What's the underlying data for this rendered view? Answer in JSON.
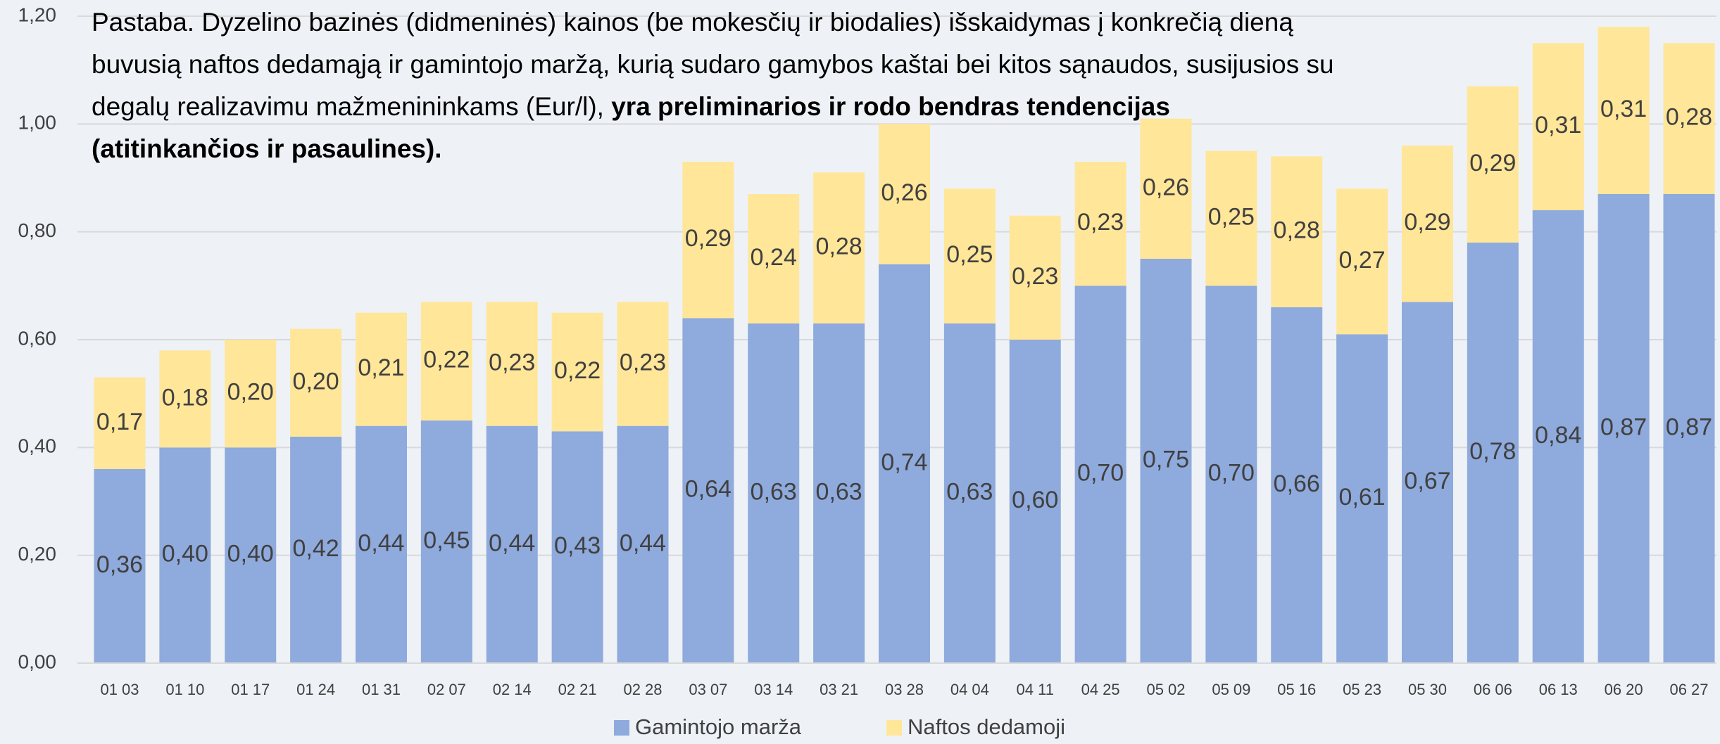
{
  "chart_data": {
    "type": "stacked_bar",
    "annotation": {
      "text": "Pastaba. Dyzelino bazinės (didmeninės) kainos (be mokesčių ir biodalies) išskaidymas į konkrečią dieną buvusią naftos dedamąją ir gamintojo maržą, kurią sudaro gamybos kaštai bei kitos sąnaudos, susijusios su degalų realizavimu mažmenininkams (Eur/l),",
      "bold": "yra preliminarios ir rodo bendras tendencijas (atitinkančios ir pasaulines)."
    },
    "categories": [
      "01 03",
      "01 10",
      "01 17",
      "01 24",
      "01 31",
      "02 07",
      "02 14",
      "02 21",
      "02 28",
      "03 07",
      "03 14",
      "03 21",
      "03 28",
      "04 04",
      "04 11",
      "04 25",
      "05 02",
      "05 09",
      "05 16",
      "05 23",
      "05 30",
      "06 06",
      "06 13",
      "06 20",
      "06 27"
    ],
    "series": [
      {
        "name": "Gamintojo marža",
        "color": "#8faadc",
        "values": [
          0.36,
          0.4,
          0.4,
          0.42,
          0.44,
          0.45,
          0.44,
          0.43,
          0.44,
          0.64,
          0.63,
          0.63,
          0.74,
          0.63,
          0.6,
          0.7,
          0.75,
          0.7,
          0.66,
          0.61,
          0.67,
          0.78,
          0.84,
          0.87,
          0.87
        ],
        "value_labels": [
          "0,36",
          "0,40",
          "0,40",
          "0,42",
          "0,44",
          "0,45",
          "0,44",
          "0,43",
          "0,44",
          "0,64",
          "0,63",
          "0,63",
          "0,74",
          "0,63",
          "0,60",
          "0,70",
          "0,75",
          "0,70",
          "0,66",
          "0,61",
          "0,67",
          "0,78",
          "0,84",
          "0,87",
          "0,87"
        ]
      },
      {
        "name": "Naftos dedamoji",
        "color": "#ffe699",
        "values": [
          0.17,
          0.18,
          0.2,
          0.2,
          0.21,
          0.22,
          0.23,
          0.22,
          0.23,
          0.29,
          0.24,
          0.28,
          0.26,
          0.25,
          0.23,
          0.23,
          0.26,
          0.25,
          0.28,
          0.27,
          0.29,
          0.29,
          0.31,
          0.31,
          0.28
        ],
        "value_labels": [
          "0,17",
          "0,18",
          "0,20",
          "0,20",
          "0,21",
          "0,22",
          "0,23",
          "0,22",
          "0,23",
          "0,29",
          "0,24",
          "0,28",
          "0,26",
          "0,25",
          "0,23",
          "0,23",
          "0,26",
          "0,25",
          "0,28",
          "0,27",
          "0,29",
          "0,29",
          "0,31",
          "0,31",
          "0,28"
        ]
      }
    ],
    "ylim": [
      0,
      1.2
    ],
    "yticks": [
      {
        "value": 0,
        "label": "0,00"
      },
      {
        "value": 0.2,
        "label": "0,20"
      },
      {
        "value": 0.4,
        "label": "0,40"
      },
      {
        "value": 0.6,
        "label": "0,60"
      },
      {
        "value": 0.8,
        "label": "0,80"
      },
      {
        "value": 1.0,
        "label": "1,00"
      },
      {
        "value": 1.2,
        "label": "1,20"
      }
    ],
    "grid": true,
    "legend": "bottom"
  }
}
